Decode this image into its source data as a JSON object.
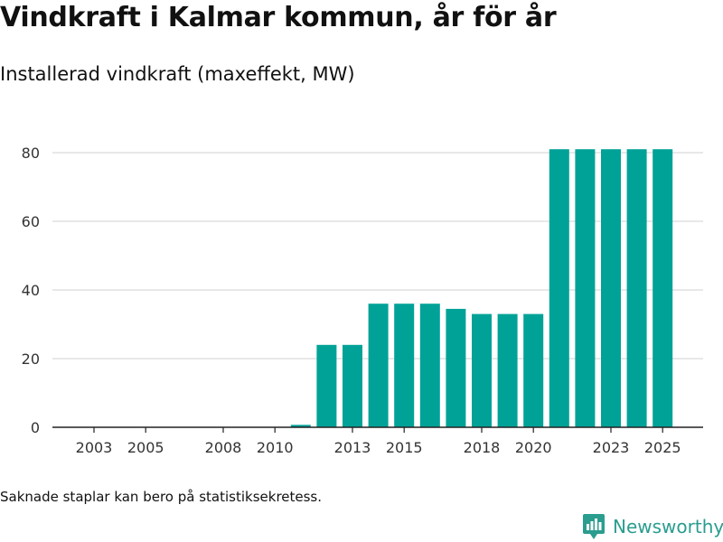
{
  "header": {
    "title": "Vindkraft i Kalmar kommun, år för år",
    "subtitle": "Installerad vindkraft (maxeffekt, MW)"
  },
  "footer": {
    "note": "Saknade staplar kan bero på statistiksekretess.",
    "brand": "Newsworthy"
  },
  "colors": {
    "bar": "#00a297",
    "grid": "#d9d9d9",
    "axis": "#222222",
    "brand": "#2a9d8f"
  },
  "chart_data": {
    "type": "bar",
    "title": "Vindkraft i Kalmar kommun, år för år",
    "subtitle": "Installerad vindkraft (maxeffekt, MW)",
    "xlabel": "",
    "ylabel": "",
    "categories": [
      "2003",
      "2004",
      "2005",
      "2006",
      "2007",
      "2008",
      "2009",
      "2010",
      "2011",
      "2012",
      "2013",
      "2014",
      "2015",
      "2016",
      "2017",
      "2018",
      "2019",
      "2020",
      "2021",
      "2022",
      "2023",
      "2024",
      "2025"
    ],
    "values": [
      0,
      0,
      0,
      0,
      0,
      0,
      0,
      0,
      0.7,
      24,
      24,
      36,
      36,
      36,
      34.5,
      33,
      33,
      33,
      81,
      81,
      81,
      81,
      81
    ],
    "x_tick_labels": [
      "2003",
      "2005",
      "2008",
      "2010",
      "2013",
      "2015",
      "2018",
      "2020",
      "2023",
      "2025"
    ],
    "y_ticks": [
      0,
      20,
      40,
      60,
      80
    ],
    "ylim": [
      0,
      80
    ],
    "grid": true
  }
}
